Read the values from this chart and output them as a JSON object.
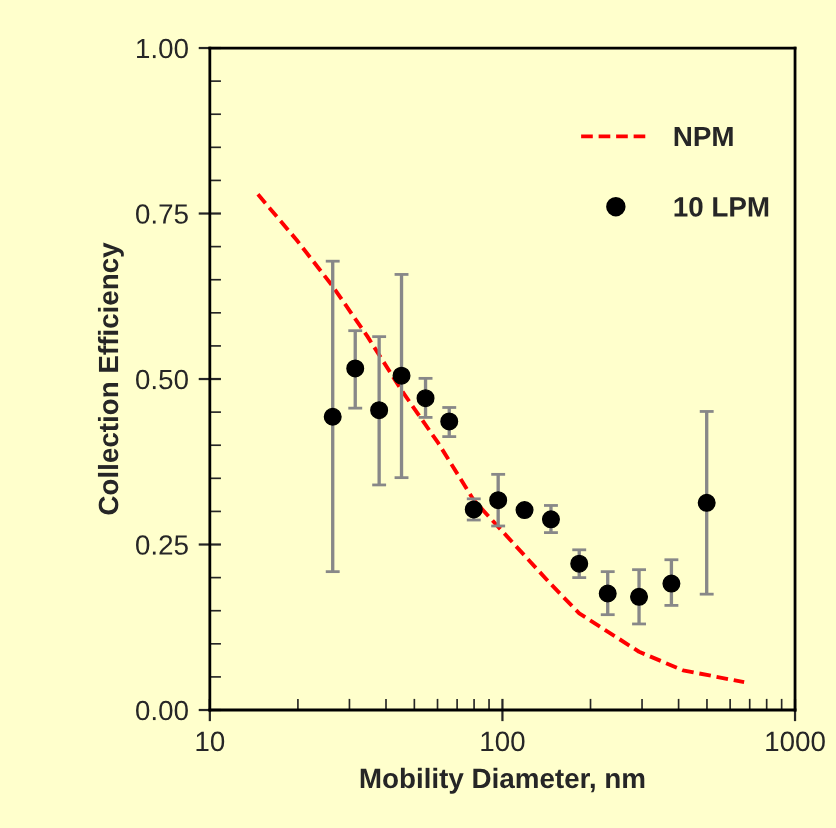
{
  "chart_data": {
    "type": "scatter",
    "xlabel": "Mobility Diameter, nm",
    "ylabel": "Collection Efficiency",
    "log": "x",
    "xlim": [
      10,
      1000
    ],
    "xticks": [
      10,
      100,
      1000
    ],
    "ylim": [
      0,
      1
    ],
    "yticks": [
      {
        "value": 0,
        "label": "0.00"
      },
      {
        "value": 0.25,
        "label": "0.25"
      },
      {
        "value": 0.5,
        "label": "0.50"
      },
      {
        "value": 0.75,
        "label": "0.75"
      },
      {
        "value": 1,
        "label": "1.00"
      }
    ],
    "grid": false,
    "legend": "top right",
    "series": [
      {
        "name": "NPM",
        "type": "line",
        "color": "#ff0000",
        "line_style": "dashed",
        "marker": "none",
        "x": [
          14.6,
          19.8,
          26.3,
          34.6,
          45.2,
          60.4,
          79.8,
          117,
          146.5,
          183,
          293,
          414,
          670
        ],
        "values": [
          0.779,
          0.71,
          0.64,
          0.564,
          0.483,
          0.403,
          0.317,
          0.237,
          0.19,
          0.146,
          0.088,
          0.06,
          0.042
        ]
      },
      {
        "name": "10 LPM",
        "type": "scatter",
        "color": "#000000",
        "marker": "circle",
        "x": [
          26.3,
          31.4,
          37.9,
          45.2,
          54.6,
          65.8,
          79.8,
          96.7,
          119,
          146.5,
          183,
          229,
          293,
          378,
          499
        ],
        "values": [
          0.443,
          0.516,
          0.453,
          0.505,
          0.471,
          0.436,
          0.303,
          0.317,
          0.302,
          0.288,
          0.221,
          0.176,
          0.171,
          0.191,
          0.313
        ],
        "errors": [
          [
            0.209,
            0.678
          ],
          [
            0.456,
            0.573
          ],
          [
            0.34,
            0.564
          ],
          [
            0.351,
            0.658
          ],
          [
            0.442,
            0.501
          ],
          [
            0.413,
            0.457
          ],
          [
            0.287,
            0.319
          ],
          [
            0.278,
            0.356
          ],
          null,
          [
            0.268,
            0.309
          ],
          [
            0.2,
            0.242
          ],
          [
            0.144,
            0.209
          ],
          [
            0.13,
            0.212
          ],
          [
            0.158,
            0.227
          ],
          [
            0.175,
            0.451
          ]
        ]
      }
    ]
  }
}
